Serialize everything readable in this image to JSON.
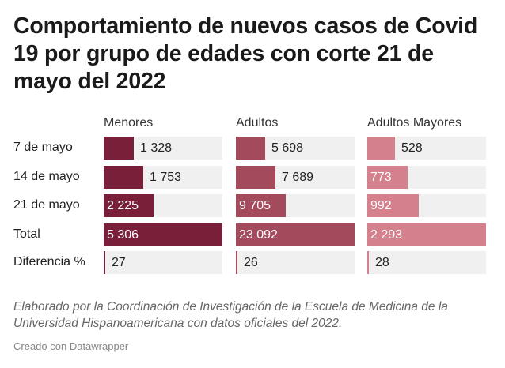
{
  "title": "Comportamiento de nuevos casos de Covid 19 por grupo de edades con corte 21 de mayo del 2022",
  "note": "Elaborado por la Coordinación de Investigación de la Escuela de Medicina de la Universidad Hispanoamericana con datos oficiales del 2022.",
  "credit": "Creado con Datawrapper",
  "colors": {
    "menores": "#7a1f3a",
    "adultos": "#a34a5c",
    "adultos_mayores": "#d4808d",
    "cell_bg": "#f0f0f0"
  },
  "chart_data": {
    "type": "table",
    "columns": [
      "Menores",
      "Adultos",
      "Adultos Mayores"
    ],
    "rows": [
      {
        "label": "7 de mayo",
        "values": [
          1328,
          5698,
          528
        ],
        "display": [
          "1 328",
          "5 698",
          "528"
        ]
      },
      {
        "label": "14 de mayo",
        "values": [
          1753,
          7689,
          773
        ],
        "display": [
          "1 753",
          "7 689",
          "773"
        ]
      },
      {
        "label": "21 de mayo",
        "values": [
          2225,
          9705,
          992
        ],
        "display": [
          "2 225",
          "9 705",
          "992"
        ]
      },
      {
        "label": "Total",
        "values": [
          5306,
          23092,
          2293
        ],
        "display": [
          "5 306",
          "23 092",
          "2 293"
        ]
      },
      {
        "label": "Diferencia %",
        "values": [
          27,
          26,
          28
        ],
        "display": [
          "27",
          "26",
          "28"
        ]
      }
    ]
  }
}
